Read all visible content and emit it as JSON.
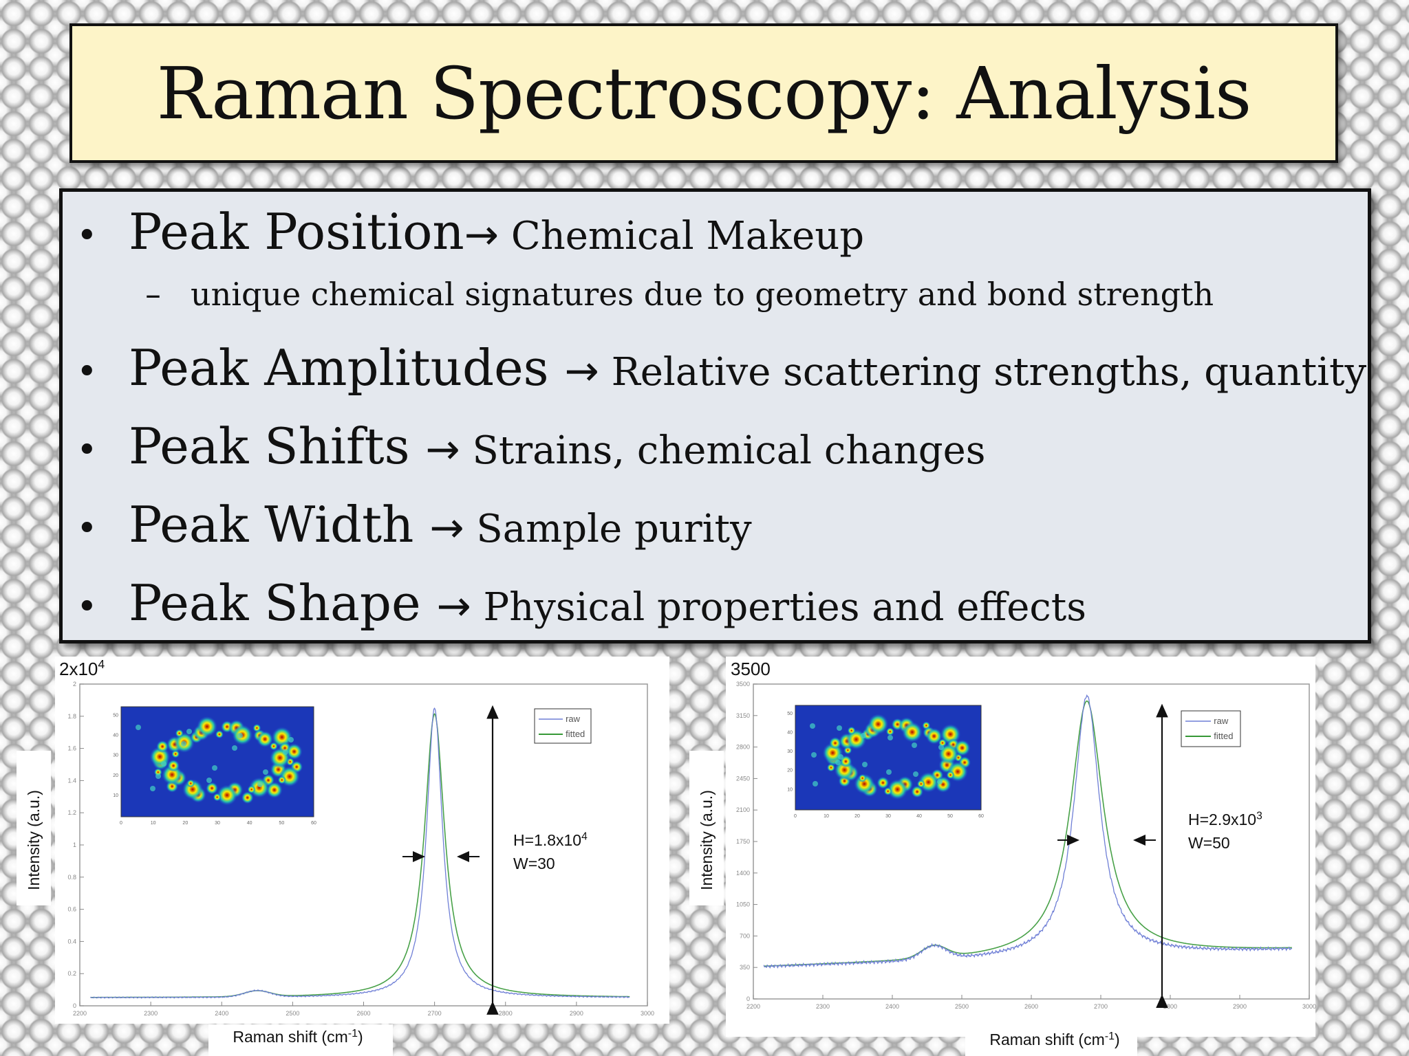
{
  "title": "Raman Spectroscopy: Analysis",
  "bullets": [
    {
      "head": "Peak Position",
      "arrow": "→",
      "desc": " Chemical Makeup",
      "sub": {
        "dash": "–",
        "text": "unique chemical signatures due to geometry and bond strength"
      }
    },
    {
      "head": "Peak Amplitudes ",
      "arrow": "→",
      "desc": " Relative scattering strengths, quantity"
    },
    {
      "head": "Peak Shifts ",
      "arrow": "→",
      "desc": " Strains, chemical changes"
    },
    {
      "head": "Peak Width ",
      "arrow": "→",
      "desc": " Sample purity"
    },
    {
      "head": "Peak Shape ",
      "arrow": "→",
      "desc": " Physical properties and effects"
    }
  ],
  "bullet_symbol": "•",
  "chart_data": [
    {
      "type": "line",
      "top_label": "2x10",
      "top_label_exp": "4",
      "ylabel": "Intensity (a.u.)",
      "xlabel_prefix": "Raman shift (cm",
      "xlabel_exp": "-1",
      "xlabel_suffix": ")",
      "xlim": [
        2200,
        3000
      ],
      "ylim": [
        0,
        2
      ],
      "legend": [
        "raw",
        "fitted"
      ],
      "legend_position": "top-right",
      "annotation_h_prefix": "H=1.8x10",
      "annotation_h_exp": "4",
      "annotation_w": "W=30",
      "peak": {
        "center": 2700,
        "height": 1.8,
        "fwhm": 30
      },
      "shoulder": {
        "center": 2450,
        "height": 0.04
      },
      "baseline": 0.05,
      "colors": {
        "raw": "#6f7fd6",
        "fitted": "#1a8a1a"
      }
    },
    {
      "type": "line",
      "top_label": "3500",
      "ylabel": "Intensity (a.u.)",
      "xlabel_prefix": "Raman shift (cm",
      "xlabel_exp": "-1",
      "xlabel_suffix": ")",
      "xlim": [
        2200,
        3000
      ],
      "ylim": [
        0,
        3500
      ],
      "legend": [
        "raw",
        "fitted"
      ],
      "legend_position": "top-right",
      "annotation_h_prefix": "H=2.9x10",
      "annotation_h_exp": "3",
      "annotation_w": "W=50",
      "peak": {
        "center": 2680,
        "height": 2900,
        "fwhm": 50
      },
      "shoulder": {
        "center": 2460,
        "height": 150
      },
      "baseline": 350,
      "colors": {
        "raw": "#6f7fd6",
        "fitted": "#1a8a1a"
      }
    }
  ]
}
